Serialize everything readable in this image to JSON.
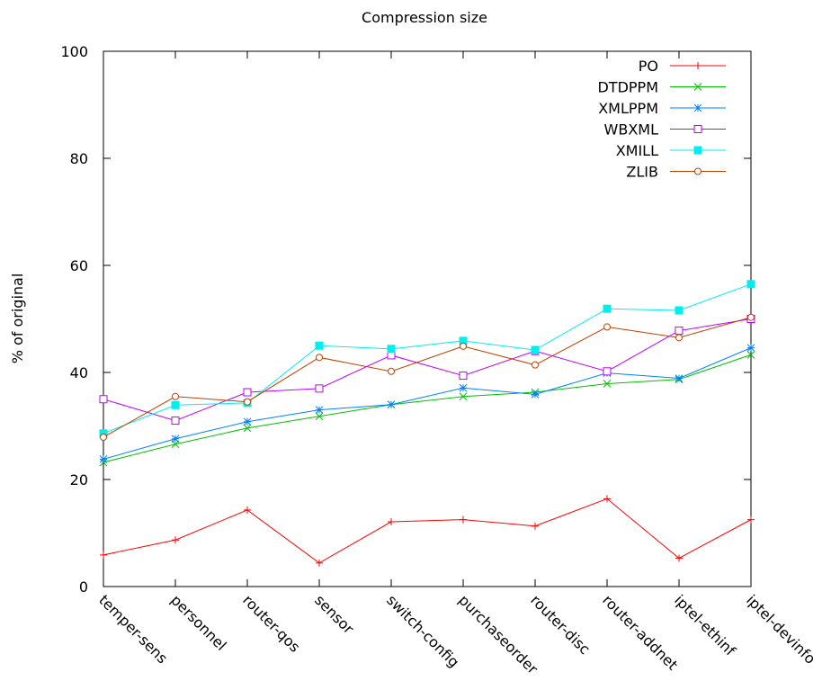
{
  "chart_data": {
    "type": "line",
    "title": "Compression size",
    "xlabel": "",
    "ylabel": "% of original",
    "ylim": [
      0,
      100
    ],
    "yticks": [
      0,
      20,
      40,
      60,
      80,
      100
    ],
    "grid": false,
    "legend_position": "top-right",
    "categories": [
      "temper-sens",
      "personnel",
      "router-qos",
      "sensor",
      "switch-config",
      "purchaseorder",
      "router-disc",
      "router-addnet",
      "iptel-ethinf",
      "iptel-devinfo"
    ],
    "series": [
      {
        "name": "PO",
        "color": "#ff0000",
        "marker": "plus",
        "values": [
          5.9,
          8.7,
          14.3,
          4.4,
          12.1,
          12.5,
          11.3,
          16.4,
          5.3,
          12.5
        ]
      },
      {
        "name": "DTDPPM",
        "color": "#00c000",
        "marker": "cross",
        "values": [
          23.2,
          26.6,
          29.6,
          31.8,
          34.0,
          35.5,
          36.3,
          37.9,
          38.7,
          43.3
        ]
      },
      {
        "name": "XMLPPM",
        "color": "#0080ff",
        "marker": "star",
        "values": [
          23.8,
          27.6,
          30.8,
          33.0,
          34.0,
          37.1,
          35.9,
          39.9,
          38.9,
          44.6
        ]
      },
      {
        "name": "WBXML",
        "color": "#c000ff",
        "marker": "open-square",
        "values": [
          35.0,
          31.0,
          36.3,
          37.0,
          43.2,
          39.4,
          44.0,
          40.2,
          47.8,
          50.0
        ]
      },
      {
        "name": "XMILL",
        "color": "#00eeee",
        "marker": "filled-square",
        "values": [
          28.6,
          33.9,
          34.3,
          45.0,
          44.4,
          45.9,
          44.2,
          51.9,
          51.6,
          56.5
        ]
      },
      {
        "name": "ZLIB",
        "color": "#c04000",
        "marker": "open-circle",
        "values": [
          27.9,
          35.5,
          34.5,
          42.8,
          40.2,
          44.9,
          41.4,
          48.5,
          46.5,
          50.3
        ]
      }
    ]
  }
}
